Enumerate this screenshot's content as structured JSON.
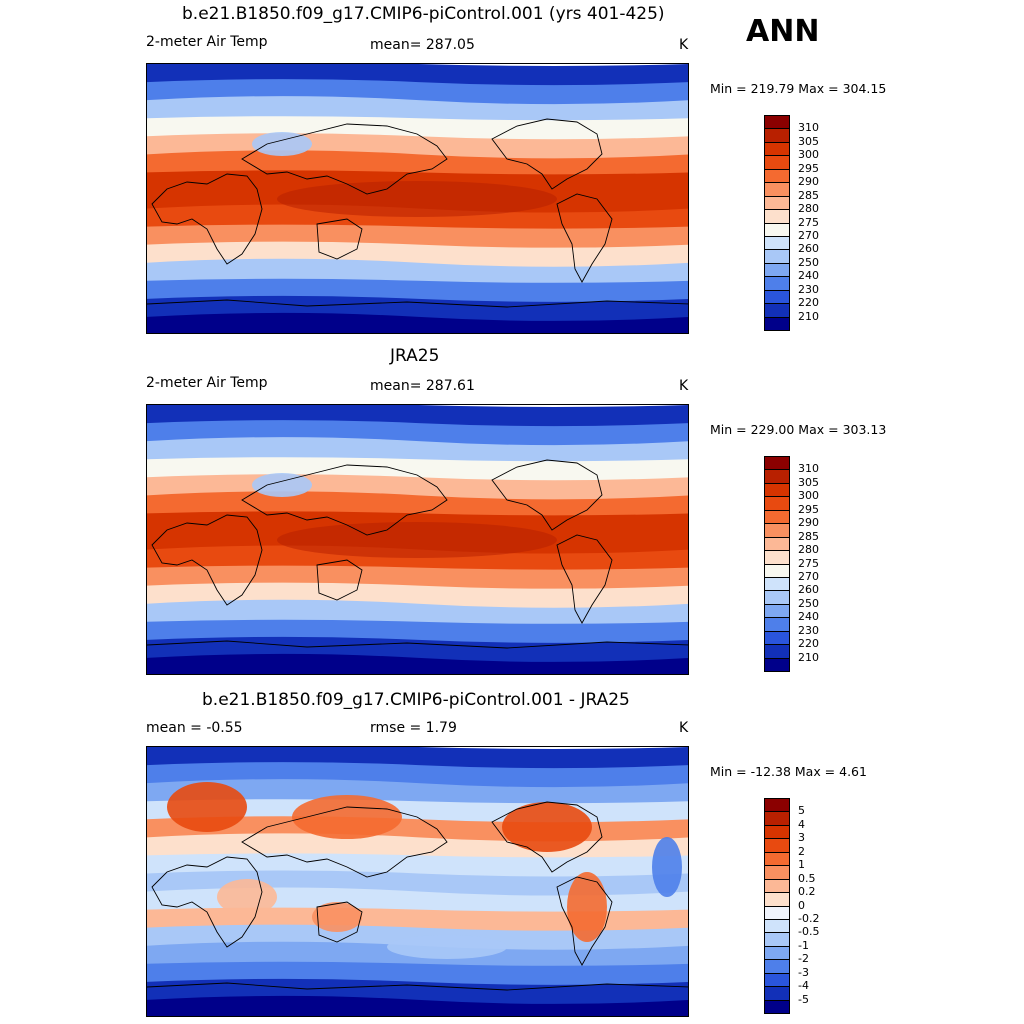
{
  "season": "ANN",
  "panels": [
    {
      "title": "b.e21.B1850.f09_g17.CMIP6-piControl.001 (yrs 401-425)",
      "left": "2-meter Air Temp",
      "center": "mean= 287.05",
      "right": "K",
      "minmax": "Min = 219.79 Max = 304.15",
      "kind": "abs"
    },
    {
      "title": "JRA25",
      "left": "2-meter Air Temp",
      "center": "mean= 287.61",
      "right": "K",
      "minmax": "Min = 229.00 Max = 303.13",
      "kind": "abs"
    },
    {
      "title": "b.e21.B1850.f09_g17.CMIP6-piControl.001 - JRA25",
      "left": "mean =  -0.55",
      "center": "rmse =   1.79",
      "right": "K",
      "minmax": "Min = -12.38 Max =   4.61",
      "kind": "diff"
    }
  ],
  "colorbars": {
    "abs": {
      "labels": [
        "310",
        "305",
        "300",
        "295",
        "290",
        "285",
        "280",
        "275",
        "270",
        "260",
        "250",
        "240",
        "230",
        "220",
        "210"
      ],
      "colors": [
        "#8b0000",
        "#b82000",
        "#d63400",
        "#e84a10",
        "#f46a30",
        "#f99060",
        "#fcb896",
        "#fde0cc",
        "#f8f8f0",
        "#cfe3fb",
        "#a9c8f7",
        "#7ea8f2",
        "#4e7fea",
        "#2a55dc",
        "#1230b8",
        "#00008a"
      ]
    },
    "diff": {
      "labels": [
        "5",
        "4",
        "3",
        "2",
        "1",
        "0.5",
        "0.2",
        "0",
        "-0.2",
        "-0.5",
        "-1",
        "-2",
        "-3",
        "-4",
        "-5"
      ],
      "colors": [
        "#8b0000",
        "#b82000",
        "#d63400",
        "#e84a10",
        "#f46a30",
        "#f99060",
        "#fcb896",
        "#fde0cc",
        "#f0f4fc",
        "#cfe3fb",
        "#a9c8f7",
        "#7ea8f2",
        "#4e7fea",
        "#2a55dc",
        "#1230b8",
        "#00008a"
      ]
    }
  },
  "chart_data": [
    {
      "type": "heatmap",
      "title": "b.e21.B1850.f09_g17.CMIP6-piControl.001 (yrs 401-425)",
      "variable": "2-meter Air Temp",
      "units": "K",
      "mean": 287.05,
      "min": 219.79,
      "max": 304.15,
      "levels": [
        210,
        220,
        230,
        240,
        250,
        260,
        270,
        275,
        280,
        285,
        290,
        295,
        300,
        305,
        310
      ]
    },
    {
      "type": "heatmap",
      "title": "JRA25",
      "variable": "2-meter Air Temp",
      "units": "K",
      "mean": 287.61,
      "min": 229.0,
      "max": 303.13,
      "levels": [
        210,
        220,
        230,
        240,
        250,
        260,
        270,
        275,
        280,
        285,
        290,
        295,
        300,
        305,
        310
      ]
    },
    {
      "type": "heatmap",
      "title": "b.e21.B1850.f09_g17.CMIP6-piControl.001 - JRA25",
      "units": "K",
      "mean": -0.55,
      "rmse": 1.79,
      "min": -12.38,
      "max": 4.61,
      "levels": [
        -5,
        -4,
        -3,
        -2,
        -1,
        -0.5,
        -0.2,
        0,
        0.2,
        0.5,
        1,
        2,
        3,
        4,
        5
      ]
    }
  ]
}
